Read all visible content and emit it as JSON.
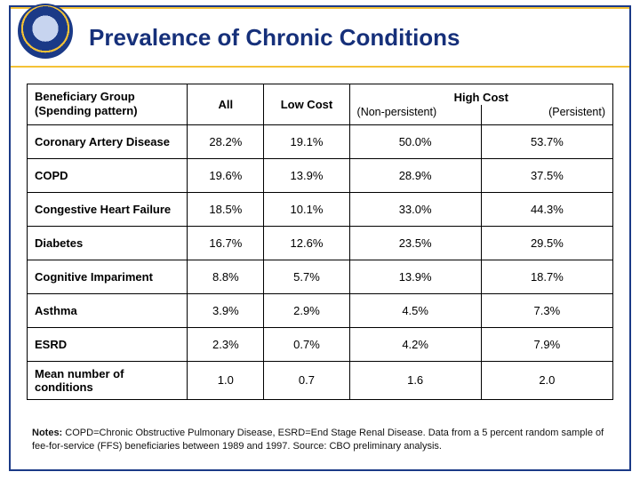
{
  "title": "Prevalence of Chronic Conditions",
  "colors": {
    "frame": "#1b3a87",
    "gold": "#f4c236",
    "title_text": "#16307a",
    "background": "#ffffff",
    "table_border": "#000000"
  },
  "table": {
    "header": {
      "group": "Beneficiary Group\n(Spending pattern)",
      "all": "All",
      "low": "Low Cost",
      "high": "High Cost",
      "high_sub_left": "(Non-persistent)",
      "high_sub_right": "(Persistent)"
    },
    "rows": [
      {
        "label": "Coronary Artery Disease",
        "all": "28.2%",
        "low": "19.1%",
        "np": "50.0%",
        "p": "53.7%"
      },
      {
        "label": "COPD",
        "all": "19.6%",
        "low": "13.9%",
        "np": "28.9%",
        "p": "37.5%"
      },
      {
        "label": "Congestive Heart Failure",
        "all": "18.5%",
        "low": "10.1%",
        "np": "33.0%",
        "p": "44.3%"
      },
      {
        "label": "Diabetes",
        "all": "16.7%",
        "low": "12.6%",
        "np": "23.5%",
        "p": "29.5%"
      },
      {
        "label": "Cognitive Impariment",
        "all": "8.8%",
        "low": "5.7%",
        "np": "13.9%",
        "p": "18.7%"
      },
      {
        "label": "Asthma",
        "all": "3.9%",
        "low": "2.9%",
        "np": "4.5%",
        "p": "7.3%"
      },
      {
        "label": "ESRD",
        "all": "2.3%",
        "low": "0.7%",
        "np": "4.2%",
        "p": "7.9%"
      },
      {
        "label": "Mean number of conditions",
        "all": "1.0",
        "low": "0.7",
        "np": "1.6",
        "p": "2.0"
      }
    ]
  },
  "notes_label": "Notes:",
  "notes_text": " COPD=Chronic Obstructive Pulmonary Disease, ESRD=End Stage Renal Disease.  Data from a 5 percent random sample of fee-for-service (FFS) beneficiaries between 1989 and 1997. Source: CBO preliminary analysis."
}
